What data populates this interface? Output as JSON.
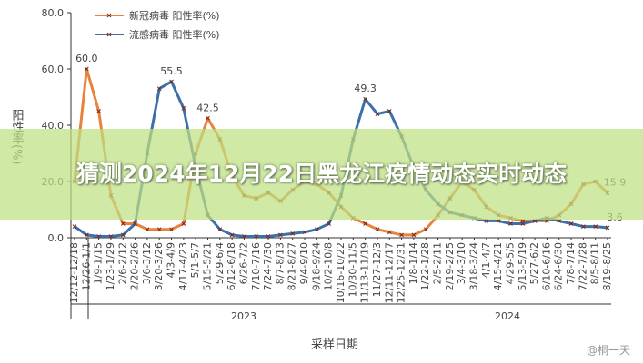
{
  "chart_data": {
    "type": "line",
    "y_label": "阳性率(%)",
    "x_label": "采样日期",
    "year_labels": [
      "2023",
      "2024"
    ],
    "categories": [
      "12/12-12/18",
      "12/26-1/1",
      "1/9-1/15",
      "1/23-1/29",
      "2/6-2/12",
      "2/20-2/26",
      "3/6-3/12",
      "3/20-3/26",
      "4/3-4/9",
      "4/17-4/23",
      "5/1-5/7",
      "5/15-5/21",
      "5/29-6/4",
      "6/12-6/18",
      "6/26-7/2",
      "7/10-7/16",
      "7/24-7/30",
      "8/7-8/13",
      "8/21-8/27",
      "9/4-9/10",
      "9/18-9/24",
      "10/2-10/8",
      "10/16-10/22",
      "10/30-11/5",
      "11/13-11/19",
      "11/27-12/3",
      "12/11-12/17",
      "12/25-12/31",
      "1/8-1/14",
      "1/22-1/28",
      "2/5-2/11",
      "2/19-2/25",
      "3/4-3/10",
      "3/18-3/24",
      "4/1-4/7",
      "4/15-4/21",
      "4/29-5/5",
      "5/13-5/19",
      "5/27-6/2",
      "6/10-6/16",
      "6/24-6/30",
      "7/8-7/14",
      "7/22-7/28",
      "8/5-8/11",
      "8/19-8/25"
    ],
    "series": [
      {
        "name": "新冠病毒  阳性率(%)",
        "color": "#e8823c",
        "values": [
          20,
          60,
          45,
          15,
          5,
          5,
          3,
          3,
          3,
          5,
          30,
          42.5,
          35,
          22,
          15,
          14,
          16,
          13,
          17,
          20,
          19,
          16,
          11,
          7,
          5,
          3,
          2,
          1,
          1,
          3,
          8,
          14,
          20,
          17,
          11,
          8,
          7,
          6,
          6,
          6,
          8,
          12,
          19,
          20,
          15.9
        ],
        "value_labels": [
          null,
          "60.0",
          null,
          null,
          null,
          null,
          null,
          null,
          null,
          null,
          null,
          "42.5",
          null,
          null,
          null,
          null,
          null,
          null,
          null,
          null,
          null,
          null,
          null,
          null,
          null,
          null,
          null,
          null,
          null,
          null,
          null,
          null,
          null,
          null,
          null,
          null,
          null,
          null,
          null,
          null,
          null,
          null,
          null,
          null,
          "15.9"
        ]
      },
      {
        "name": "流感病毒  阳性率(%)",
        "color": "#3f6fa8",
        "values": [
          4,
          1,
          0.5,
          0.5,
          1,
          5,
          30,
          53,
          55.5,
          46,
          25,
          8,
          3,
          1,
          0.5,
          0.5,
          0.5,
          1,
          1.5,
          2,
          3,
          5,
          15,
          35,
          49.3,
          44,
          45,
          36,
          25,
          17,
          12,
          9,
          8,
          7,
          6,
          6,
          5,
          5,
          6,
          7,
          6,
          5,
          4,
          4,
          3.6
        ],
        "value_labels": [
          null,
          null,
          null,
          null,
          null,
          null,
          null,
          null,
          "55.5",
          null,
          null,
          null,
          null,
          null,
          null,
          null,
          null,
          null,
          null,
          null,
          null,
          null,
          null,
          null,
          "49.3",
          null,
          null,
          null,
          null,
          null,
          null,
          null,
          null,
          null,
          null,
          null,
          null,
          null,
          null,
          null,
          null,
          null,
          null,
          null,
          "3.6"
        ]
      }
    ],
    "ylim": [
      0,
      80
    ],
    "yticks": [
      {
        "value": 0,
        "label": "0.0"
      },
      {
        "value": 20,
        "label": "20.0"
      },
      {
        "value": 40,
        "label": "40.0"
      },
      {
        "value": 60,
        "label": "60.0"
      },
      {
        "value": 80,
        "label": "80.0"
      }
    ],
    "legend": "top-left"
  },
  "overlay_title": "猜测2024年12月22日黑龙江疫情动态实时动态",
  "watermark": "@桐一天"
}
